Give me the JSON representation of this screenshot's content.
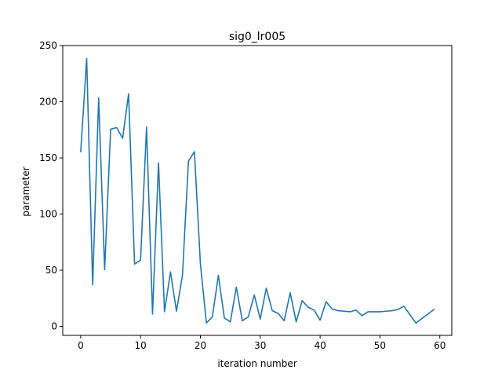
{
  "chart_data": {
    "type": "line",
    "title": "sig0_lr005",
    "xlabel": "iteration number",
    "ylabel": "parameter",
    "xlim": [
      -3,
      62
    ],
    "ylim": [
      -8,
      250
    ],
    "x_ticks": [
      0,
      10,
      20,
      30,
      40,
      50,
      60
    ],
    "y_ticks": [
      0,
      50,
      100,
      150,
      200,
      250
    ],
    "grid": false,
    "series": [
      {
        "color": "#1f77b4",
        "x": [
          0,
          1,
          2,
          3,
          4,
          5,
          6,
          7,
          8,
          9,
          10,
          11,
          12,
          13,
          14,
          15,
          16,
          17,
          18,
          19,
          20,
          21,
          22,
          23,
          24,
          25,
          26,
          27,
          28,
          29,
          30,
          31,
          32,
          33,
          34,
          35,
          36,
          37,
          38,
          39,
          40,
          41,
          42,
          43,
          44,
          45,
          46,
          47,
          48,
          49,
          50,
          51,
          52,
          53,
          54,
          55,
          56,
          57,
          58,
          59
        ],
        "values": [
          155.5,
          238.5,
          37,
          203.5,
          50.5,
          175.5,
          177,
          167.5,
          207,
          55.5,
          59,
          177.5,
          11,
          145.5,
          13,
          48.5,
          13.5,
          45.5,
          147,
          155.5,
          55.5,
          3,
          8.5,
          45.5,
          7.5,
          4,
          35,
          5,
          8.5,
          28,
          6.5,
          34,
          14,
          11.5,
          5,
          30,
          4,
          23,
          17,
          14.5,
          5.5,
          22,
          15.5,
          14,
          13.5,
          13,
          14.5,
          9.5,
          13,
          13,
          13,
          13.5,
          14,
          15,
          18,
          10.5,
          3,
          7,
          11,
          15
        ]
      }
    ]
  }
}
